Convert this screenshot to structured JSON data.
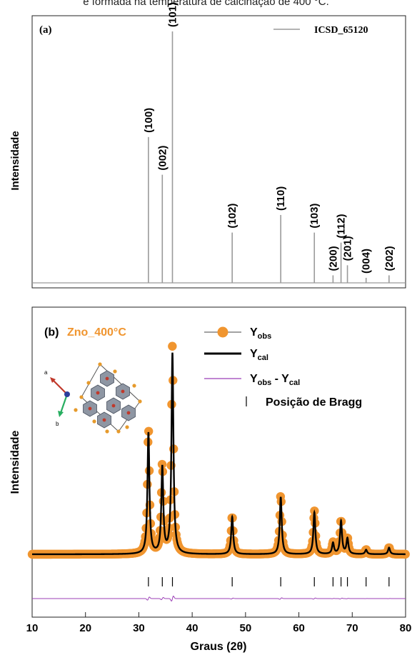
{
  "caption": "e formada na temperatura de calcinação de 400 °C.",
  "chart_data": [
    {
      "type": "bar",
      "panel_label": "(a)",
      "ylabel": "Intensidade",
      "legend": {
        "entry": "ICSD_65120",
        "placement": "top-right"
      },
      "colors": {
        "sticks": "#9a9a9a",
        "legend_line": "#9a9a9a"
      },
      "xlim": [
        10,
        80
      ],
      "ylim": [
        0,
        1
      ],
      "peaks": [
        {
          "two_theta": 31.8,
          "intensity": 0.58,
          "hkl": "(100)"
        },
        {
          "two_theta": 34.4,
          "intensity": 0.43,
          "hkl": "(002)"
        },
        {
          "two_theta": 36.3,
          "intensity": 1.0,
          "hkl": "(101)"
        },
        {
          "two_theta": 47.5,
          "intensity": 0.2,
          "hkl": "(102)"
        },
        {
          "two_theta": 56.6,
          "intensity": 0.27,
          "hkl": "(110)"
        },
        {
          "two_theta": 62.9,
          "intensity": 0.2,
          "hkl": "(103)"
        },
        {
          "two_theta": 66.4,
          "intensity": 0.03,
          "hkl": "(200)"
        },
        {
          "two_theta": 67.9,
          "intensity": 0.16,
          "hkl": "(112)"
        },
        {
          "two_theta": 69.1,
          "intensity": 0.07,
          "hkl": "(201)"
        },
        {
          "two_theta": 72.6,
          "intensity": 0.02,
          "hkl": "(004)"
        },
        {
          "two_theta": 76.9,
          "intensity": 0.03,
          "hkl": "(202)"
        }
      ]
    },
    {
      "type": "line",
      "panel_label": "(b)",
      "sample_label": "Zno_400°C",
      "xlabel": "Graus (2θ)",
      "ylabel": "Intensidade",
      "xlim": [
        10,
        80
      ],
      "xticks": [
        10,
        20,
        30,
        40,
        50,
        60,
        70,
        80
      ],
      "ylim": [
        0,
        1
      ],
      "legend_placement": "top-right",
      "legend": [
        {
          "key": "obs",
          "main": "Y",
          "sub": "obs"
        },
        {
          "key": "cal",
          "main": "Y",
          "sub": "cal"
        },
        {
          "key": "diff",
          "main": "Y",
          "sub": "obs",
          "mid": " - Y",
          "sub2": "cal"
        },
        {
          "key": "bragg",
          "main": "Posição de Bragg"
        }
      ],
      "colors": {
        "obs": "#f0952f",
        "cal": "#000000",
        "diff": "#9b3fb6",
        "bragg": "#000000",
        "sample_label": "#f0952f"
      },
      "baseline": 0.0,
      "peak_width": 0.22,
      "peaks": [
        {
          "two_theta": 31.8,
          "height": 0.55
        },
        {
          "two_theta": 34.4,
          "height": 0.39
        },
        {
          "two_theta": 36.3,
          "height": 0.91
        },
        {
          "two_theta": 47.5,
          "height": 0.17
        },
        {
          "two_theta": 56.6,
          "height": 0.26
        },
        {
          "two_theta": 62.9,
          "height": 0.19
        },
        {
          "two_theta": 66.4,
          "height": 0.05
        },
        {
          "two_theta": 67.9,
          "height": 0.15
        },
        {
          "two_theta": 69.1,
          "height": 0.07
        },
        {
          "two_theta": 72.6,
          "height": 0.02
        },
        {
          "two_theta": 76.9,
          "height": 0.03
        }
      ],
      "bragg_positions": [
        31.8,
        34.4,
        36.3,
        47.5,
        56.6,
        62.9,
        66.4,
        67.9,
        69.1,
        72.6,
        76.9
      ],
      "inset": {
        "axis_labels": [
          "a",
          "b"
        ],
        "colors": {
          "a_axis": "#c0392b",
          "b_axis": "#27ae60",
          "c_axis": "#2c3e9b",
          "polyhedra": "#8e96a3",
          "atoms_o": "#e69a2b",
          "atoms_zn": "#c0392b"
        }
      }
    }
  ]
}
